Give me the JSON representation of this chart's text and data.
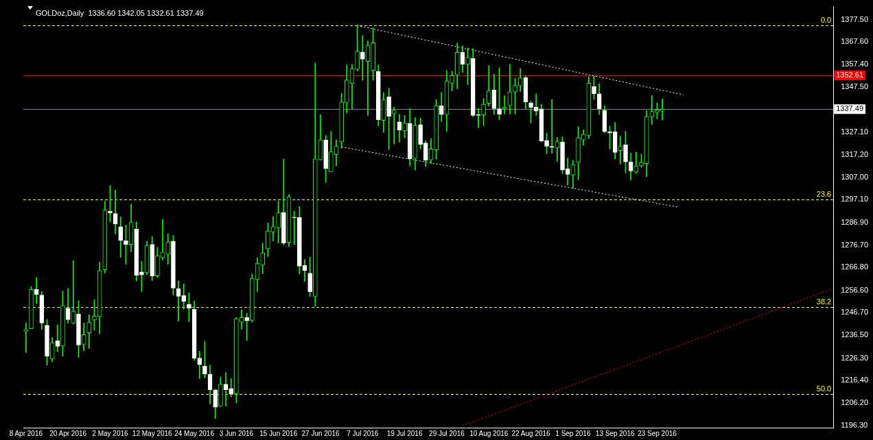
{
  "chart_data": {
    "type": "candlestick",
    "title": "GOLDoz,Daily  1336.60 1342.05 1332.61 1337.49",
    "color": "#00ff00",
    "colors": [
      "#00ff00",
      "#00ff00",
      "#ffffff",
      "#ffffff",
      "#ffffff",
      "#00ff00",
      "#ffffff",
      "#00ff00",
      "#ffffff",
      "#00ff00",
      "#ffffff",
      "#00ff00",
      "#00ff00",
      "#00ff00",
      "#00ff00",
      "#00ff00",
      "#ffffff",
      "#ffffff",
      "#ffffff",
      "#ffffff",
      "#00ff00",
      "#ffffff",
      "#ffffff",
      "#00ff00",
      "#ffffff",
      "#00ff00",
      "#00ff00",
      "#00ff00",
      "#ffffff",
      "#ffffff",
      "#ffffff",
      "#ffffff",
      "#ffffff",
      "#ffffff",
      "#ffffff",
      "#ffffff",
      "#ffffff",
      "#00ff00",
      "#ffffff",
      "#ffffff",
      "#00ff00",
      "#00ff00",
      "#ffffff",
      "#00ff00",
      "#00ff00",
      "#00ff00",
      "#00ff00",
      "#00ff00",
      "#00ff00",
      "#ffffff",
      "#00ff00",
      "#ffffff",
      "#ffffff",
      "#ffffff",
      "#ffffff",
      "#00ff00",
      "#00ff00",
      "#ffffff",
      "#00ff00",
      "#00ff00",
      "#00ff00",
      "#00ff00",
      "#00ff00",
      "#00ff00",
      "#ffffff",
      "#00ff00",
      "#00ff00",
      "#ffffff",
      "#00ff00",
      "#ffffff",
      "#00ff00",
      "#ffffff",
      "#00ff00",
      "#ffffff",
      "#00ff00",
      "#ffffff",
      "#ffffff",
      "#00ff00",
      "#00ff00",
      "#ffffff",
      "#00ff00",
      "#00ff00",
      "#00ff00",
      "#ffffff",
      "#00ff00",
      "#ffffff",
      "#ffffff",
      "#00ff00",
      "#00ff00",
      "#ffffff",
      "#ffffff",
      "#00ff00",
      "#00ff00",
      "#00ff00",
      "#00ff00",
      "#ffffff",
      "#ffffff",
      "#ffffff",
      "#ffffff",
      "#ffffff",
      "#ffffff",
      "#00ff00",
      "#ffffff",
      "#ffffff",
      "#00ff00",
      "#00ff00",
      "#00ff00",
      "#00ff00",
      "#ffffff",
      "#ffffff",
      "#ffffff",
      "#ffffff",
      "#ffffff",
      "#00ff00",
      "#ffffff",
      "#ffffff",
      "#00ff00",
      "#00ff00",
      "#00ff00",
      "#00ff00",
      "#00ff00",
      "#00ff00",
      null,
      null,
      null,
      null,
      null,
      null,
      null,
      null,
      null,
      null,
      null,
      null,
      null,
      null,
      null,
      null,
      null,
      null,
      null,
      null,
      null,
      null,
      null,
      null,
      null,
      null,
      null,
      null,
      null,
      null,
      null,
      null
    ],
    "categories": [
      "8 Apr 2016",
      null,
      null,
      null,
      null,
      null,
      null,
      null,
      "20 Apr 2016",
      null,
      null,
      null,
      null,
      null,
      null,
      null,
      "2 May 2016",
      null,
      null,
      null,
      null,
      null,
      null,
      null,
      "12 May 2016",
      null,
      null,
      null,
      null,
      null,
      null,
      null,
      "24 May 2016",
      null,
      null,
      null,
      null,
      null,
      null,
      null,
      "3 Jun 2016",
      null,
      null,
      null,
      null,
      null,
      null,
      null,
      "15 Jun 2016",
      null,
      null,
      null,
      null,
      null,
      null,
      null,
      "27 Jun 2016",
      null,
      null,
      null,
      null,
      null,
      null,
      null,
      "7 Jul 2016",
      null,
      null,
      null,
      null,
      null,
      null,
      null,
      "19 Jul 2016",
      null,
      null,
      null,
      null,
      null,
      null,
      null,
      "29 Jul 2016",
      null,
      null,
      null,
      null,
      null,
      null,
      null,
      "10 Aug 2016",
      null,
      null,
      null,
      null,
      null,
      null,
      null,
      "22 Aug 2016",
      null,
      null,
      null,
      null,
      null,
      null,
      null,
      "1 Sep 2016",
      null,
      null,
      null,
      null,
      null,
      null,
      null,
      "13 Sep 2016",
      null,
      null,
      null,
      null,
      null,
      null,
      null,
      "23 Sep 2016",
      null,
      null,
      null,
      null,
      null,
      null,
      null,
      null,
      null,
      null,
      null,
      null,
      null,
      null,
      null,
      null,
      null,
      null,
      null,
      null,
      null,
      null,
      null,
      null,
      null,
      null,
      null,
      null,
      null,
      null,
      null,
      null,
      null
    ],
    "ohlc": [
      [
        1238.4,
        1242.0,
        1228.8,
        1239.1
      ],
      [
        1239.5,
        1258.3,
        1239.5,
        1257.0
      ],
      [
        1257.0,
        1262.4,
        1250.8,
        1254.8
      ],
      [
        1254.5,
        1256.1,
        1239.2,
        1242.0
      ],
      [
        1241.0,
        1243.6,
        1223.2,
        1227.2
      ],
      [
        1225.9,
        1235.5,
        1224.7,
        1233.2
      ],
      [
        1234.1,
        1241.2,
        1229.2,
        1231.6
      ],
      [
        1231.7,
        1256.3,
        1227.2,
        1249.8
      ],
      [
        1248.7,
        1257.4,
        1242.0,
        1243.5
      ],
      [
        1242.0,
        1269.8,
        1241.7,
        1247.3
      ],
      [
        1246.0,
        1252.0,
        1226.7,
        1232.2
      ],
      [
        1232.5,
        1242.0,
        1229.5,
        1236.8
      ],
      [
        1237.6,
        1245.7,
        1230.7,
        1242.4
      ],
      [
        1243.5,
        1252.4,
        1238.8,
        1245.1
      ],
      [
        1244.9,
        1269.2,
        1237.2,
        1265.4
      ],
      [
        1265.8,
        1296.4,
        1264.3,
        1292.4
      ],
      [
        1292.0,
        1303.4,
        1287.1,
        1291.1
      ],
      [
        1290.9,
        1301.4,
        1281.8,
        1286.2
      ],
      [
        1285.0,
        1289.4,
        1271.3,
        1278.9
      ],
      [
        1278.8,
        1285.8,
        1268.3,
        1277.1
      ],
      [
        1277.1,
        1295.1,
        1273.9,
        1287.1
      ],
      [
        1284.0,
        1287.1,
        1260.8,
        1263.3
      ],
      [
        1264.8,
        1269.6,
        1256.1,
        1263.5
      ],
      [
        1264.5,
        1278.6,
        1263.5,
        1276.7
      ],
      [
        1277.1,
        1280.6,
        1261.0,
        1263.0
      ],
      [
        1263.0,
        1275.8,
        1262.3,
        1272.1
      ],
      [
        1271.1,
        1288.3,
        1270.2,
        1273.7
      ],
      [
        1272.7,
        1281.8,
        1268.3,
        1278.2
      ],
      [
        1278.6,
        1281.1,
        1254.5,
        1257.6
      ],
      [
        1257.4,
        1260.8,
        1242.9,
        1253.9
      ],
      [
        1254.3,
        1259.5,
        1248.2,
        1251.6
      ],
      [
        1250.4,
        1255.5,
        1242.6,
        1248.6
      ],
      [
        1248.2,
        1251.8,
        1225.4,
        1226.3
      ],
      [
        1226.3,
        1229.4,
        1217.2,
        1223.4
      ],
      [
        1222.8,
        1233.8,
        1217.5,
        1219.2
      ],
      [
        1219.2,
        1223.2,
        1205.9,
        1212.2
      ],
      [
        1212.2,
        1212.5,
        1199.4,
        1204.4
      ],
      [
        1205.0,
        1217.8,
        1204.8,
        1214.7
      ],
      [
        1214.7,
        1219.9,
        1205.0,
        1212.2
      ],
      [
        1212.8,
        1217.2,
        1209.0,
        1210.3
      ],
      [
        1210.3,
        1244.5,
        1206.3,
        1243.9
      ],
      [
        1242.4,
        1248.0,
        1239.2,
        1244.5
      ],
      [
        1244.5,
        1246.4,
        1234.2,
        1243.0
      ],
      [
        1243.2,
        1263.9,
        1242.4,
        1262.0
      ],
      [
        1261.4,
        1271.2,
        1256.1,
        1268.7
      ],
      [
        1268.0,
        1277.7,
        1264.0,
        1273.3
      ],
      [
        1275.2,
        1286.8,
        1271.7,
        1283.1
      ],
      [
        1282.7,
        1289.6,
        1278.6,
        1285.0
      ],
      [
        1284.6,
        1296.4,
        1277.7,
        1291.2
      ],
      [
        1291.4,
        1315.3,
        1276.8,
        1277.7
      ],
      [
        1278.0,
        1299.3,
        1276.1,
        1298.4
      ],
      [
        1289.1,
        1291.9,
        1277.1,
        1289.0
      ],
      [
        1289.2,
        1294.0,
        1263.9,
        1267.4
      ],
      [
        1267.7,
        1270.4,
        1260.5,
        1265.4
      ],
      [
        1264.3,
        1271.4,
        1253.9,
        1256.0
      ],
      [
        1253.9,
        1358.1,
        1249.5,
        1315.3
      ],
      [
        1314.9,
        1335.0,
        1314.7,
        1323.8
      ],
      [
        1323.8,
        1325.7,
        1304.9,
        1310.9
      ],
      [
        1309.6,
        1327.6,
        1309.6,
        1318.4
      ],
      [
        1317.2,
        1323.8,
        1312.2,
        1320.9
      ],
      [
        1322.9,
        1344.5,
        1320.0,
        1340.7
      ],
      [
        1340.3,
        1357.3,
        1335.7,
        1350.5
      ],
      [
        1348.9,
        1357.5,
        1337.5,
        1355.6
      ],
      [
        1355.3,
        1375.1,
        1354.5,
        1363.3
      ],
      [
        1363.0,
        1370.4,
        1350.4,
        1359.8
      ],
      [
        1358.8,
        1367.9,
        1334.7,
        1366.0
      ],
      [
        1354.8,
        1373.8,
        1350.4,
        1367.2
      ],
      [
        1354.4,
        1357.3,
        1330.0,
        1332.8
      ],
      [
        1332.5,
        1345.0,
        1327.1,
        1341.7
      ],
      [
        1343.1,
        1346.9,
        1319.5,
        1334.3
      ],
      [
        1335.6,
        1338.5,
        1321.9,
        1337.0
      ],
      [
        1331.8,
        1335.1,
        1322.8,
        1328.2
      ],
      [
        1327.8,
        1334.7,
        1324.7,
        1331.2
      ],
      [
        1331.2,
        1337.8,
        1312.2,
        1315.3
      ],
      [
        1315.5,
        1333.7,
        1310.3,
        1330.2
      ],
      [
        1330.6,
        1333.5,
        1319.7,
        1321.8
      ],
      [
        1322.4,
        1323.4,
        1311.9,
        1314.7
      ],
      [
        1314.9,
        1324.3,
        1313.2,
        1319.7
      ],
      [
        1319.3,
        1341.8,
        1315.2,
        1339.1
      ],
      [
        1339.1,
        1345.0,
        1332.0,
        1335.1
      ],
      [
        1335.1,
        1354.8,
        1327.6,
        1350.1
      ],
      [
        1349.1,
        1354.5,
        1345.7,
        1352.5
      ],
      [
        1352.8,
        1367.0,
        1346.6,
        1362.9
      ],
      [
        1362.9,
        1365.8,
        1353.9,
        1357.5
      ],
      [
        1357.5,
        1364.8,
        1348.5,
        1360.6
      ],
      [
        1360.1,
        1364.5,
        1334.1,
        1334.7
      ],
      [
        1334.8,
        1337.8,
        1329.3,
        1334.7
      ],
      [
        1334.9,
        1342.2,
        1330.1,
        1339.7
      ],
      [
        1340.1,
        1357.0,
        1338.8,
        1345.7
      ],
      [
        1346.1,
        1353.1,
        1335.2,
        1337.8
      ],
      [
        1337.7,
        1356.0,
        1332.8,
        1335.2
      ],
      [
        1337.8,
        1343.5,
        1335.3,
        1338.5
      ],
      [
        1339.1,
        1357.5,
        1335.3,
        1345.2
      ],
      [
        1345.2,
        1351.3,
        1335.3,
        1348.1
      ],
      [
        1347.9,
        1355.6,
        1345.4,
        1351.5
      ],
      [
        1351.6,
        1352.5,
        1337.5,
        1340.7
      ],
      [
        1340.2,
        1341.0,
        1331.3,
        1338.2
      ],
      [
        1338.5,
        1344.4,
        1334.7,
        1336.6
      ],
      [
        1337.6,
        1339.7,
        1322.9,
        1323.2
      ],
      [
        1323.6,
        1326.7,
        1317.5,
        1320.9
      ],
      [
        1320.9,
        1341.8,
        1317.8,
        1320.4
      ],
      [
        1320.2,
        1324.9,
        1314.3,
        1323.0
      ],
      [
        1322.9,
        1325.2,
        1308.8,
        1310.3
      ],
      [
        1310.9,
        1315.7,
        1303.6,
        1308.4
      ],
      [
        1308.1,
        1314.7,
        1302.1,
        1312.8
      ],
      [
        1313.7,
        1329.7,
        1305.9,
        1324.7
      ],
      [
        1323.8,
        1328.2,
        1321.3,
        1326.3
      ],
      [
        1325.7,
        1352.0,
        1324.3,
        1349.1
      ],
      [
        1347.6,
        1352.3,
        1342.0,
        1344.4
      ],
      [
        1344.4,
        1348.9,
        1335.1,
        1337.6
      ],
      [
        1337.0,
        1339.1,
        1326.9,
        1327.4
      ],
      [
        1327.4,
        1330.0,
        1319.7,
        1326.8
      ],
      [
        1327.4,
        1331.6,
        1315.3,
        1318.2
      ],
      [
        1319.0,
        1325.4,
        1313.0,
        1320.9
      ],
      [
        1321.6,
        1327.6,
        1309.0,
        1314.0
      ],
      [
        1313.9,
        1317.8,
        1305.9,
        1309.9
      ],
      [
        1309.4,
        1318.2,
        1308.8,
        1312.2
      ],
      [
        1312.2,
        1317.4,
        1311.5,
        1313.7
      ],
      [
        1313.2,
        1336.8,
        1307.4,
        1334.2
      ],
      [
        1334.2,
        1343.5,
        1330.7,
        1336.5
      ],
      [
        1336.0,
        1340.3,
        1333.2,
        1337.2
      ],
      [
        1336.6,
        1342.05,
        1332.61,
        1337.49
      ],
      null,
      null,
      null,
      null,
      null,
      null,
      null,
      null,
      null,
      null,
      null,
      null,
      null,
      null,
      null,
      null,
      null,
      null,
      null,
      null,
      null,
      null,
      null,
      null,
      null,
      null,
      null,
      null,
      null,
      null,
      null,
      null
    ],
    "series": [
      {
        "type": "line",
        "color": "#ffffff",
        "line_style": "dotted",
        "values": [
          null,
          null,
          null,
          null,
          null,
          null,
          null,
          null,
          null,
          null,
          null,
          null,
          null,
          null,
          null,
          null,
          null,
          null,
          null,
          null,
          null,
          null,
          null,
          null,
          null,
          null,
          null,
          null,
          null,
          null,
          null,
          null,
          null,
          null,
          null,
          null,
          null,
          null,
          null,
          null,
          null,
          null,
          null,
          null,
          null,
          null,
          null,
          null,
          null,
          null,
          null,
          null,
          null,
          null,
          null,
          null,
          null,
          null,
          null,
          null,
          null,
          null,
          null,
          1374.8,
          null,
          null,
          null,
          null,
          null,
          null,
          null,
          null,
          null,
          null,
          null,
          null,
          null,
          null,
          null,
          null,
          null,
          null,
          null,
          null,
          null,
          null,
          null,
          null,
          null,
          null,
          null,
          null,
          null,
          null,
          null,
          null,
          null,
          null,
          null,
          null,
          null,
          null,
          null,
          null,
          null,
          null,
          null,
          null,
          null,
          null,
          null,
          null,
          null,
          null,
          null,
          null,
          null,
          null,
          null,
          null,
          null,
          null,
          null,
          null,
          null,
          1343.9,
          null,
          null,
          null,
          null,
          null,
          null,
          null,
          null,
          null,
          null,
          null,
          null,
          null,
          null,
          null,
          null,
          null,
          null,
          null,
          null,
          null,
          null,
          null,
          null,
          null,
          null,
          null,
          null
        ]
      },
      {
        "type": "line",
        "color": "#ffffff",
        "line_style": "dotted",
        "values": [
          null,
          null,
          null,
          null,
          null,
          null,
          null,
          null,
          null,
          null,
          null,
          null,
          null,
          null,
          null,
          null,
          null,
          null,
          null,
          null,
          null,
          null,
          null,
          null,
          null,
          null,
          null,
          null,
          null,
          null,
          null,
          null,
          null,
          null,
          null,
          null,
          null,
          null,
          null,
          null,
          null,
          null,
          null,
          null,
          null,
          null,
          null,
          null,
          null,
          null,
          null,
          null,
          null,
          null,
          null,
          null,
          null,
          null,
          null,
          null,
          1320.6,
          null,
          null,
          null,
          null,
          null,
          null,
          null,
          null,
          null,
          null,
          null,
          null,
          null,
          null,
          null,
          null,
          null,
          null,
          null,
          null,
          null,
          null,
          null,
          null,
          null,
          null,
          null,
          null,
          null,
          null,
          null,
          null,
          null,
          null,
          null,
          null,
          null,
          null,
          null,
          null,
          null,
          null,
          null,
          null,
          null,
          null,
          null,
          null,
          null,
          null,
          null,
          null,
          null,
          null,
          null,
          null,
          null,
          null,
          null,
          null,
          null,
          null,
          null,
          1293.8,
          null,
          null,
          null,
          null,
          null,
          null,
          null,
          null,
          null,
          null,
          null,
          null,
          null,
          null,
          null,
          null,
          null,
          null,
          null,
          null,
          null,
          null,
          null,
          null,
          null,
          null,
          null,
          null,
          null
        ]
      },
      {
        "type": "line",
        "color": "#ff0000",
        "line_style": "dotted",
        "values": [
          null,
          null,
          null,
          null,
          null,
          null,
          null,
          null,
          null,
          null,
          null,
          null,
          null,
          null,
          null,
          null,
          null,
          null,
          null,
          null,
          null,
          null,
          null,
          null,
          null,
          null,
          null,
          null,
          null,
          null,
          null,
          null,
          null,
          null,
          null,
          null,
          null,
          null,
          null,
          null,
          null,
          null,
          null,
          null,
          null,
          null,
          null,
          null,
          null,
          null,
          null,
          null,
          null,
          null,
          null,
          null,
          null,
          null,
          null,
          null,
          null,
          null,
          null,
          null,
          null,
          null,
          null,
          null,
          null,
          null,
          null,
          null,
          null,
          null,
          null,
          null,
          null,
          null,
          null,
          null,
          null,
          null,
          null,
          1196.1,
          null,
          null,
          null,
          null,
          null,
          null,
          null,
          null,
          null,
          null,
          null,
          null,
          null,
          null,
          null,
          null,
          null,
          null,
          null,
          null,
          null,
          null,
          null,
          null,
          null,
          null,
          null,
          null,
          null,
          null,
          null,
          null,
          null,
          null,
          null,
          null,
          null,
          null,
          null,
          null,
          null,
          null,
          null,
          null,
          null,
          null,
          null,
          null,
          null,
          null,
          null,
          null,
          null,
          null,
          null,
          null,
          null,
          null,
          null,
          null,
          null,
          null,
          null,
          null,
          null,
          null,
          null,
          null,
          null,
          1257.0
        ]
      }
    ],
    "ref_lines": [
      {
        "axis": "y",
        "value": 1374.8,
        "color": "#ffff00",
        "line_style": "dashed"
      },
      {
        "axis": "y",
        "value": 1297.1,
        "color": "#ffff00",
        "line_style": "dashed"
      },
      {
        "axis": "y",
        "value": 1249.1,
        "color": "#ffff00",
        "line_style": "dashed"
      },
      {
        "axis": "y",
        "value": 1210.3,
        "color": "#ffff00",
        "line_style": "dashed"
      },
      {
        "axis": "y",
        "value": 1352.61,
        "label": "1352.61",
        "color": "#ff0000",
        "line_style": "solid"
      },
      {
        "axis": "y",
        "value": 1337.49,
        "label": "1337.49",
        "color": "#778899",
        "line_style": "solid"
      }
    ],
    "annotations": [
      {
        "text": "0.0",
        "y": 1374.8
      },
      {
        "text": "23.6",
        "y": 1297.1
      },
      {
        "text": "38.2",
        "y": 1249.1
      },
      {
        "text": "50.0",
        "y": 1210.3
      }
    ],
    "ylim": [
      1195.3,
      1383.3
    ],
    "yticks": [
      {
        "value": 1377.5,
        "label": "1377.50"
      },
      {
        "value": 1367.6,
        "label": "1367.60"
      },
      {
        "value": 1357.4,
        "label": "1357.40"
      },
      {
        "value": 1347.5,
        "label": "1347.50"
      },
      {
        "value": 1327.1,
        "label": "1327.10"
      },
      {
        "value": 1317.2,
        "label": "1317.20"
      },
      {
        "value": 1307.0,
        "label": "1307.00"
      },
      {
        "value": 1297.1,
        "label": "1297.10"
      },
      {
        "value": 1286.9,
        "label": "1286.90"
      },
      {
        "value": 1276.7,
        "label": "1276.70"
      },
      {
        "value": 1266.8,
        "label": "1266.80"
      },
      {
        "value": 1256.6,
        "label": "1256.60"
      },
      {
        "value": 1246.7,
        "label": "1246.70"
      },
      {
        "value": 1236.5,
        "label": "1236.50"
      },
      {
        "value": 1226.3,
        "label": "1226.30"
      },
      {
        "value": 1216.4,
        "label": "1216.40"
      },
      {
        "value": 1206.2,
        "label": "1206.20"
      },
      {
        "value": 1196.3,
        "label": "1196.30"
      }
    ],
    "marker": "none"
  }
}
